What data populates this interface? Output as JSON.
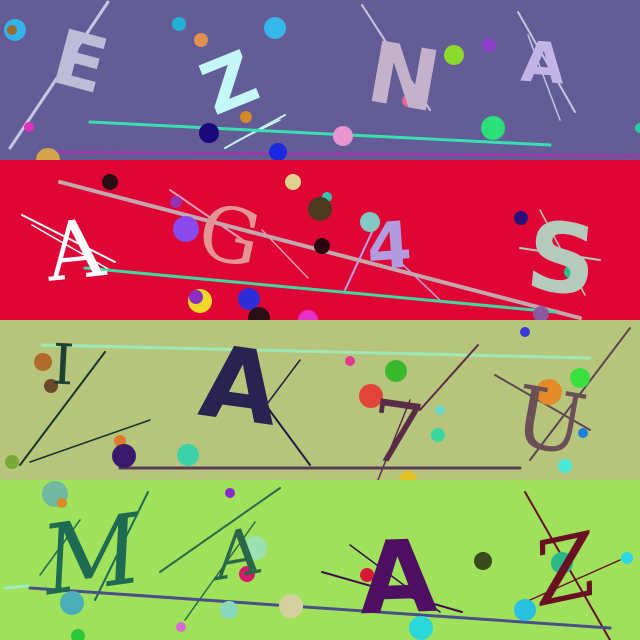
{
  "rows": [
    {
      "background": "#635c97",
      "letters": [
        {
          "char": "E",
          "color": "#bdbbd6"
        },
        {
          "char": "Z",
          "color": "#c4f7f8"
        },
        {
          "char": "N",
          "color": "#c4b1cc"
        },
        {
          "char": "A",
          "color": "#c3b4e6"
        }
      ]
    },
    {
      "background": "#df0535",
      "letters": [
        {
          "char": "A",
          "color": "#ffffff"
        },
        {
          "char": "G",
          "color": "#e49495"
        },
        {
          "char": "4",
          "color": "#b39be0"
        },
        {
          "char": "S",
          "color": "#b6c9bd"
        }
      ]
    },
    {
      "background": "#b6c57b",
      "letters": [
        {
          "char": "I",
          "color": "#1f4133"
        },
        {
          "char": "A",
          "color": "#2a2352"
        },
        {
          "char": "7",
          "color": "#5b2c47"
        },
        {
          "char": "U",
          "color": "#6b5058"
        }
      ]
    },
    {
      "background": "#9fe15a",
      "letters": [
        {
          "char": "M",
          "color": "#1f6a52"
        },
        {
          "char": "A",
          "color": "#29694a"
        },
        {
          "char": "A",
          "color": "#4f1063"
        },
        {
          "char": "Z",
          "color": "#6a1023"
        }
      ]
    }
  ]
}
